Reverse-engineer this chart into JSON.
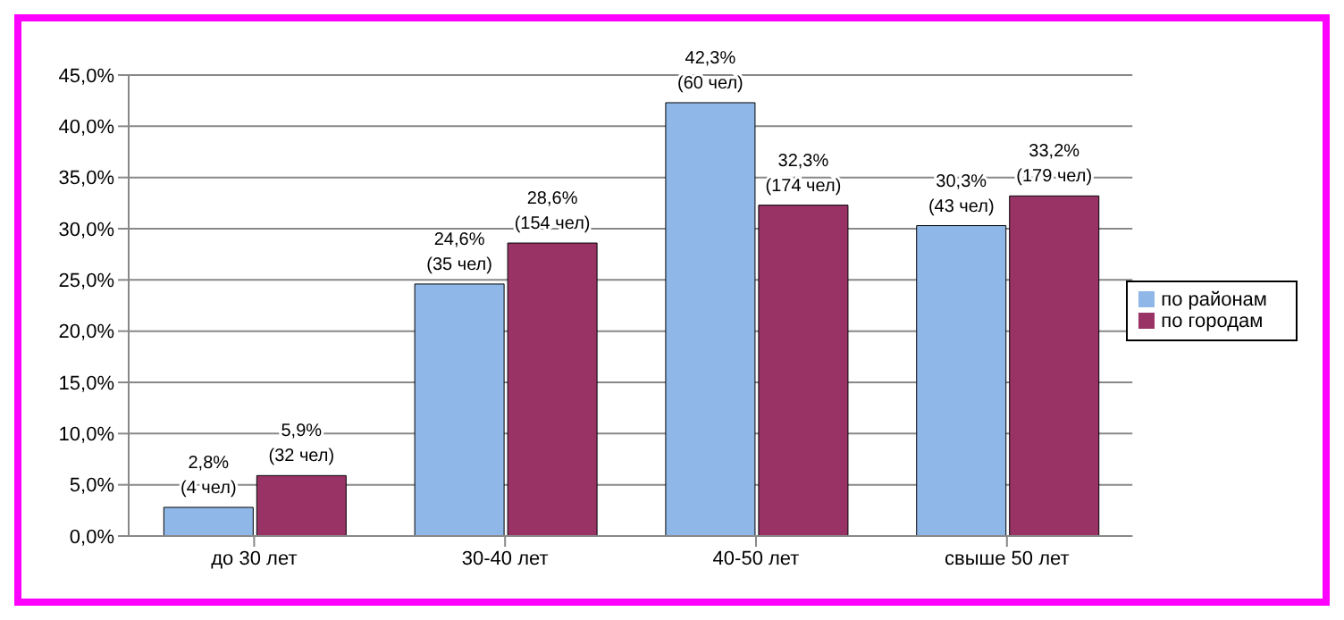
{
  "chart_data": {
    "type": "bar",
    "categories": [
      "до 30 лет",
      "30-40 лет",
      "40-50 лет",
      "свыше 50 лет"
    ],
    "series": [
      {
        "name": "по районам",
        "color": "#8fb8e8",
        "values": [
          2.8,
          24.6,
          42.3,
          30.3
        ],
        "value_labels": [
          "2,8%\n(4 чел)",
          "24,6%\n(35 чел)",
          "42,3%\n(60 чел)",
          "30,3%\n(43 чел)"
        ]
      },
      {
        "name": "по городам",
        "color": "#993366",
        "values": [
          5.9,
          28.6,
          32.3,
          33.2
        ],
        "value_labels": [
          "5,9%\n(32 чел)",
          "28,6%\n(154 чел)",
          "32,3%\n(174 чел)",
          "33,2%\n(179 чел)"
        ]
      }
    ],
    "ylim": [
      0,
      45
    ],
    "yticks": [
      {
        "value": 0,
        "label": "0,0%"
      },
      {
        "value": 5,
        "label": "5,0%"
      },
      {
        "value": 10,
        "label": "10,0%"
      },
      {
        "value": 15,
        "label": "15,0%"
      },
      {
        "value": 20,
        "label": "20,0%"
      },
      {
        "value": 25,
        "label": "25,0%"
      },
      {
        "value": 30,
        "label": "30,0%"
      },
      {
        "value": 35,
        "label": "35,0%"
      },
      {
        "value": 40,
        "label": "40,0%"
      },
      {
        "value": 45,
        "label": "45,0%"
      }
    ],
    "grid": "y",
    "legend": "right"
  }
}
